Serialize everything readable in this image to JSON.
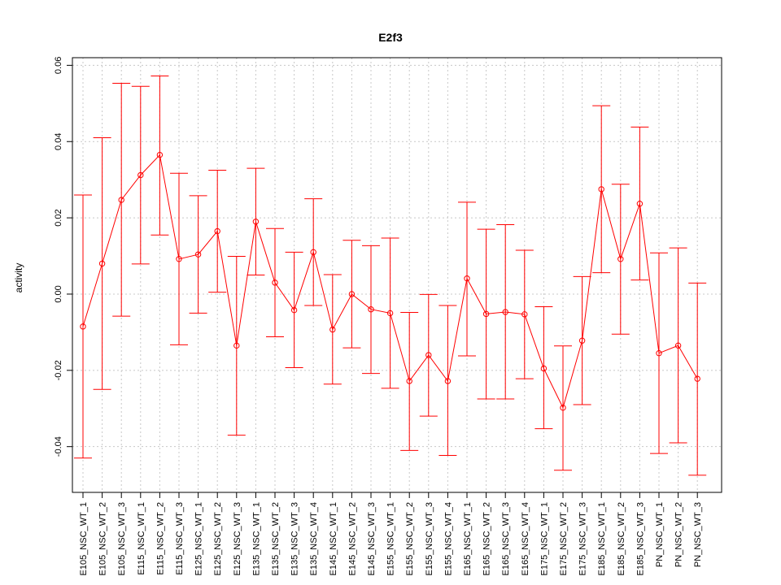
{
  "chart_data": {
    "type": "line",
    "title": "E2f3",
    "xlabel": "",
    "ylabel": "activity",
    "ylim": [
      -0.052,
      0.062
    ],
    "yticks": [
      -0.04,
      -0.02,
      0.0,
      0.02,
      0.04,
      0.06
    ],
    "ytick_labels": [
      "-0.04",
      "-0.02",
      "0.00",
      "0.02",
      "0.04",
      "0.06"
    ],
    "grid": true,
    "colors": {
      "series": "#ff0000",
      "grid": "#c8c8c8",
      "axis": "#000000"
    },
    "categories": [
      "E105_NSC_WT_1",
      "E105_NSC_WT_2",
      "E105_NSC_WT_3",
      "E115_NSC_WT_1",
      "E115_NSC_WT_2",
      "E115_NSC_WT_3",
      "E125_NSC_WT_1",
      "E125_NSC_WT_2",
      "E125_NSC_WT_3",
      "E135_NSC_WT_1",
      "E135_NSC_WT_2",
      "E135_NSC_WT_3",
      "E135_NSC_WT_4",
      "E145_NSC_WT_1",
      "E145_NSC_WT_2",
      "E145_NSC_WT_3",
      "E155_NSC_WT_1",
      "E155_NSC_WT_2",
      "E155_NSC_WT_3",
      "E155_NSC_WT_4",
      "E165_NSC_WT_1",
      "E165_NSC_WT_2",
      "E165_NSC_WT_3",
      "E165_NSC_WT_4",
      "E175_NSC_WT_1",
      "E175_NSC_WT_2",
      "E175_NSC_WT_3",
      "E185_NSC_WT_1",
      "E185_NSC_WT_2",
      "E185_NSC_WT_3",
      "PN_NSC_WT_1",
      "PN_NSC_WT_2",
      "PN_NSC_WT_3"
    ],
    "values": [
      -0.0085,
      0.008,
      0.0247,
      0.0312,
      0.0365,
      0.0092,
      0.0104,
      0.0165,
      -0.0135,
      0.019,
      0.003,
      -0.0042,
      0.011,
      -0.0093,
      0.0,
      -0.004,
      -0.005,
      -0.0228,
      -0.016,
      -0.0228,
      0.0041,
      -0.0052,
      -0.0047,
      -0.0053,
      -0.0195,
      -0.0298,
      -0.0122,
      0.0275,
      0.0092,
      0.0237,
      -0.0155,
      -0.0135,
      -0.0222
    ],
    "upper": [
      0.026,
      0.041,
      0.0553,
      0.0545,
      0.0572,
      0.0317,
      0.0258,
      0.0325,
      0.0099,
      0.033,
      0.0172,
      0.011,
      0.025,
      0.0051,
      0.0141,
      0.0127,
      0.0147,
      -0.0048,
      -0.0001,
      -0.003,
      0.0241,
      0.017,
      0.0182,
      0.0115,
      -0.0033,
      -0.0136,
      0.0046,
      0.0494,
      0.0288,
      0.0438,
      0.0108,
      0.0121,
      0.0029
    ],
    "lower": [
      -0.043,
      -0.025,
      -0.0058,
      0.0079,
      0.0155,
      -0.0133,
      -0.005,
      0.0005,
      -0.037,
      0.005,
      -0.0112,
      -0.0193,
      -0.003,
      -0.0236,
      -0.0141,
      -0.0208,
      -0.0247,
      -0.041,
      -0.032,
      -0.0423,
      -0.0162,
      -0.0275,
      -0.0275,
      -0.0222,
      -0.0353,
      -0.0462,
      -0.029,
      0.0056,
      -0.0105,
      0.0037,
      -0.0418,
      -0.039,
      -0.0475
    ]
  }
}
